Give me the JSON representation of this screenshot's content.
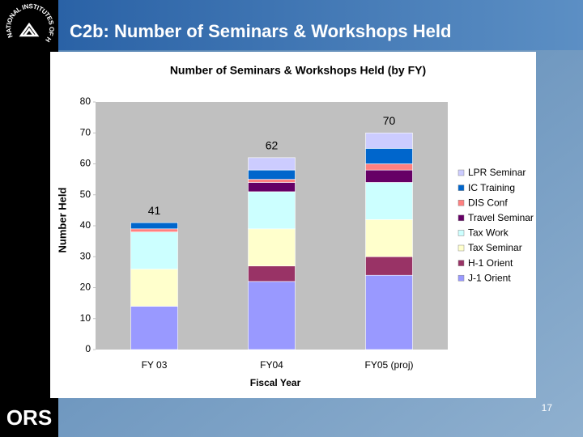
{
  "slide": {
    "title": "C2b:  Number of Seminars & Workshops Held",
    "logo": "NATIONAL INSTITUTES OF HEALTH",
    "brand": "ORS",
    "page_number": "17"
  },
  "chart_data": {
    "type": "stacked_bar",
    "title": "Number of Seminars & Workshops Held (by FY)",
    "x_label": "Fiscal Year",
    "y_label": "Number Held",
    "categories": [
      "FY 03",
      "FY04",
      "FY05 (proj)"
    ],
    "series": [
      {
        "name": "J-1 Orient",
        "color": "#9999ff",
        "values": [
          14,
          22,
          24
        ]
      },
      {
        "name": "H-1 Orient",
        "color": "#993366",
        "values": [
          0,
          5,
          6
        ]
      },
      {
        "name": "Tax Seminar",
        "color": "#ffffcc",
        "values": [
          12,
          12,
          12
        ]
      },
      {
        "name": "Tax Work",
        "color": "#ccffff",
        "values": [
          12,
          12,
          12
        ]
      },
      {
        "name": "Travel Seminar",
        "color": "#660066",
        "values": [
          0,
          3,
          4
        ]
      },
      {
        "name": "DIS Conf",
        "color": "#ff8080",
        "values": [
          1,
          1,
          2
        ]
      },
      {
        "name": "IC Training",
        "color": "#0066cc",
        "values": [
          2,
          3,
          5
        ]
      },
      {
        "name": "LPR Seminar",
        "color": "#ccccff",
        "values": [
          0,
          4,
          5
        ]
      }
    ],
    "totals": [
      41,
      62,
      70
    ],
    "ylim": [
      0,
      80
    ],
    "yticks": [
      0,
      10,
      20,
      30,
      40,
      50,
      60,
      70,
      80
    ],
    "grid": false,
    "legend": "right"
  }
}
